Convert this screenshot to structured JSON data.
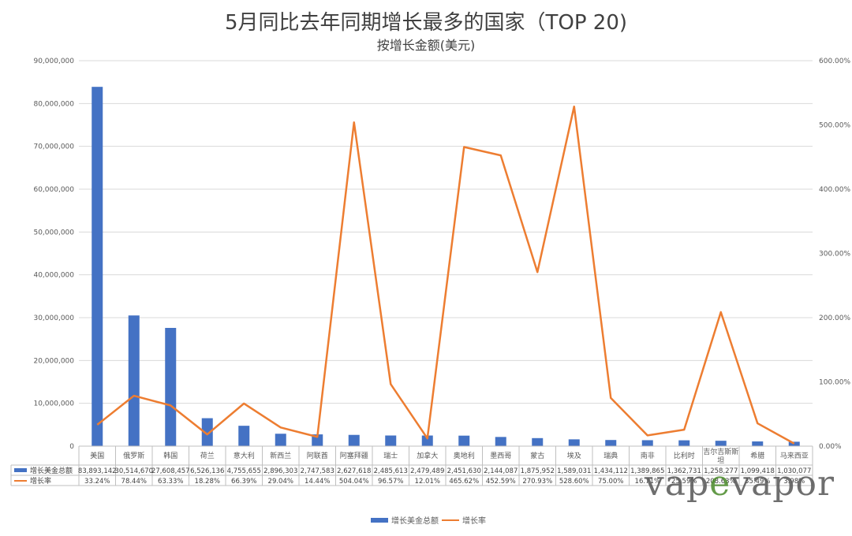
{
  "chart_data": {
    "type": "bar",
    "title": "5月同比去年同期增长最多的国家（TOP 20)",
    "subtitle": "按增长金额(美元)",
    "categories": [
      "美国",
      "俄罗斯",
      "韩国",
      "荷兰",
      "意大利",
      "新西兰",
      "阿联酋",
      "阿塞拜疆",
      "瑞士",
      "加拿大",
      "奥地利",
      "墨西哥",
      "蒙古",
      "埃及",
      "瑞典",
      "南非",
      "比利时",
      "吉尔吉斯斯坦",
      "希腊",
      "马来西亚"
    ],
    "series": [
      {
        "name": "增长美金总额",
        "type": "bar",
        "axis": "left",
        "color": "#4472C4",
        "values": [
          83893142,
          30514670,
          27608457,
          6526136,
          4755655,
          2896303,
          2747583,
          2627618,
          2485613,
          2479489,
          2451630,
          2144087,
          1875952,
          1589031,
          1434112,
          1389865,
          1362731,
          1258277,
          1099418,
          1030077
        ],
        "labels": [
          "83,893,142",
          "30,514,670",
          "27,608,457",
          "6,526,136",
          "4,755,655",
          "2,896,303",
          "2,747,583",
          "2,627,618",
          "2,485,613",
          "2,479,489",
          "2,451,630",
          "2,144,087",
          "1,875,952",
          "1,589,031",
          "1,434,112",
          "1,389,865",
          "1,362,731",
          "1,258,277",
          "1,099,418",
          "1,030,077"
        ]
      },
      {
        "name": "增长率",
        "type": "line",
        "axis": "right",
        "color": "#ED7D31",
        "values": [
          33.24,
          78.44,
          63.33,
          18.28,
          66.39,
          29.04,
          14.44,
          504.04,
          96.57,
          12.01,
          465.62,
          452.59,
          270.93,
          528.6,
          75.0,
          16.71,
          25.59,
          208.63,
          35.49,
          3.98
        ],
        "labels": [
          "33.24%",
          "78.44%",
          "63.33%",
          "18.28%",
          "66.39%",
          "29.04%",
          "14.44%",
          "504.04%",
          "96.57%",
          "12.01%",
          "465.62%",
          "452.59%",
          "270.93%",
          "528.60%",
          "75.00%",
          "16.71%",
          "25.59%",
          "208.63%",
          "35.49%",
          "3.98%"
        ]
      }
    ],
    "y_left": {
      "ylim": [
        0,
        90000000
      ],
      "ticks": [
        "0",
        "10,000,000",
        "20,000,000",
        "30,000,000",
        "40,000,000",
        "50,000,000",
        "60,000,000",
        "70,000,000",
        "80,000,000",
        "90,000,000"
      ]
    },
    "y_right": {
      "ylim": [
        0,
        600
      ],
      "ticks": [
        "0.00%",
        "100.00%",
        "200.00%",
        "300.00%",
        "400.00%",
        "500.00%",
        "600.00%"
      ]
    },
    "grid": true,
    "legend_position": "bottom",
    "data_table": true
  },
  "watermark": "vapevapor"
}
